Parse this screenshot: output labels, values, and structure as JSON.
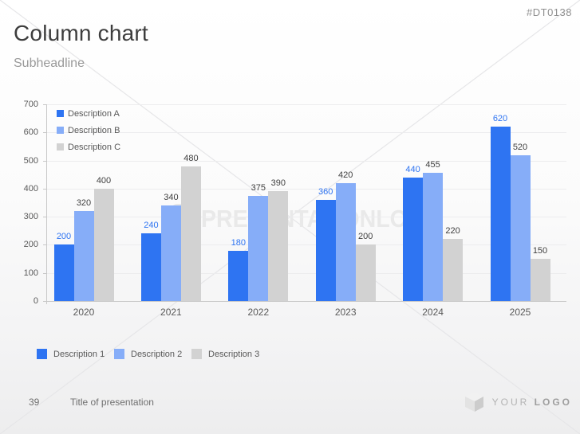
{
  "slide": {
    "code": "#DT0138",
    "title": "Column chart",
    "subtitle": "Subheadline"
  },
  "chart_data": {
    "type": "bar",
    "title": "",
    "xlabel": "",
    "ylabel": "",
    "categories": [
      "2020",
      "2021",
      "2022",
      "2023",
      "2024",
      "2025"
    ],
    "series": [
      {
        "name": "Description A",
        "color": "#2e74f2",
        "label_color": "#2e74f2",
        "values": [
          200,
          240,
          180,
          360,
          440,
          620
        ]
      },
      {
        "name": "Description B",
        "color": "#86adf8",
        "label_color": "#404040",
        "values": [
          320,
          340,
          375,
          420,
          455,
          520
        ]
      },
      {
        "name": "Description C",
        "color": "#d2d2d2",
        "label_color": "#404040",
        "values": [
          400,
          480,
          390,
          200,
          220,
          150
        ]
      }
    ],
    "ylim": [
      0,
      700
    ],
    "yticks": [
      0,
      100,
      200,
      300,
      400,
      500,
      600,
      700
    ],
    "grid": true,
    "legend_position": "top-left-inside",
    "data_labels": true
  },
  "bottom_legend": {
    "items": [
      {
        "label": "Description 1",
        "color": "#2e74f2"
      },
      {
        "label": "Description 2",
        "color": "#86adf8"
      },
      {
        "label": "Description 3",
        "color": "#d2d2d2"
      }
    ]
  },
  "watermark": {
    "logo_glyph": "p",
    "text": "PRESENTATIONLOAD"
  },
  "footer": {
    "page_number": "39",
    "presentation_title": "Title of presentation",
    "logo_text_primary": "YOUR",
    "logo_text_secondary": "LOGO"
  },
  "colors": {
    "accent_blue": "#2e74f2",
    "accent_light_blue": "#86adf8",
    "accent_gray": "#d2d2d2",
    "axis_text": "#595959",
    "gridline": "#ececee"
  }
}
